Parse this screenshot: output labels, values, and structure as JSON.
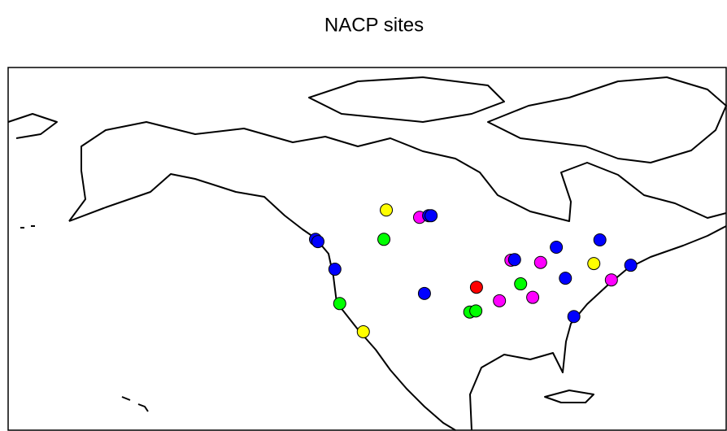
{
  "chart_data": {
    "type": "map",
    "title": "NACP sites",
    "lon": [
      -111.3,
      -105.8,
      -104.3,
      -103.9,
      -111.7,
      -123.0,
      -122.6,
      -119.8,
      -119.0,
      -115.1,
      -105.0,
      -96.4,
      -97.5,
      -96.5,
      -92.6,
      -89.1,
      -87.1,
      -90.7,
      -90.1,
      -85.8,
      -83.2,
      -76.0,
      -81.7,
      -77.0,
      -70.9,
      -74.1,
      -80.3
    ],
    "lat": [
      54.3,
      53.0,
      53.3,
      53.3,
      49.1,
      49.1,
      48.7,
      43.8,
      37.7,
      32.7,
      39.5,
      40.6,
      36.2,
      36.4,
      38.2,
      41.2,
      38.8,
      45.4,
      45.5,
      45.0,
      47.7,
      49.0,
      42.2,
      44.8,
      44.5,
      41.9,
      35.4
    ],
    "colors": [
      "#ffff00",
      "#ff00ff",
      "#0000ff",
      "#0000ff",
      "#00ff00",
      "#0000ff",
      "#0000ff",
      "#0000ff",
      "#00ff00",
      "#ffff00",
      "#0000ff",
      "#ff0000",
      "#00ff00",
      "#00ff00",
      "#ff00ff",
      "#00ff00",
      "#ff00ff",
      "#ff00ff",
      "#0000ff",
      "#ff00ff",
      "#0000ff",
      "#0000ff",
      "#0000ff",
      "#ffff00",
      "#0000ff",
      "#ff00ff",
      "#0000ff"
    ]
  }
}
